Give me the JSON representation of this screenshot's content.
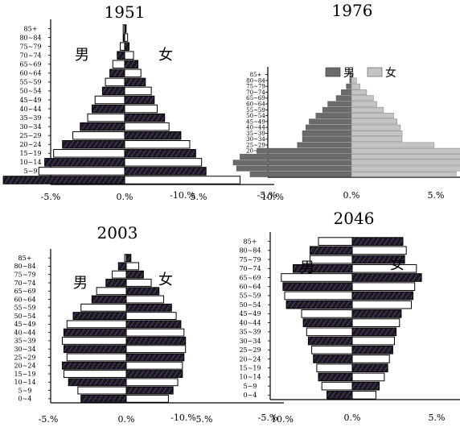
{
  "chart_data": [
    {
      "type": "bar",
      "title": "1951",
      "style": "hatched",
      "categories": [
        "0~4",
        "5~9",
        "10~14",
        "15~19",
        "20~24",
        "25~29",
        "30~34",
        "35~39",
        "40~44",
        "45~49",
        "50~54",
        "55~59",
        "60~64",
        "65~69",
        "70~74",
        "75~79",
        "80~84",
        "85+"
      ],
      "series": [
        {
          "name": "男",
          "values": [
            8.2,
            5.8,
            5.4,
            4.8,
            4.2,
            3.5,
            3.0,
            2.5,
            2.2,
            2.0,
            1.5,
            1.3,
            1.0,
            0.8,
            0.5,
            0.3,
            0.1,
            0.1
          ]
        },
        {
          "name": "女",
          "values": [
            7.8,
            5.5,
            5.2,
            4.8,
            4.4,
            3.8,
            3.0,
            2.7,
            2.2,
            2.0,
            1.8,
            1.4,
            1.1,
            0.9,
            0.6,
            0.3,
            0.2,
            0.1
          ]
        }
      ],
      "xlim": [
        -10,
        10
      ],
      "xticks": [
        "-10.%",
        "-5.%",
        "0.%",
        "5.%",
        "10.%"
      ]
    },
    {
      "type": "bar",
      "title": "1976",
      "style": "shaded",
      "categories": [
        "0~4",
        "5~9",
        "10~14",
        "15~19",
        "20~24",
        "25~29",
        "30~34",
        "35~39",
        "40~44",
        "45~49",
        "50~54",
        "55~59",
        "60~64",
        "65~69",
        "70~74",
        "75~79",
        "80~84",
        "85+"
      ],
      "series": [
        {
          "name": "男",
          "values": [
            6.0,
            6.8,
            7.0,
            6.6,
            5.6,
            3.2,
            2.9,
            2.9,
            2.7,
            2.5,
            2.1,
            1.7,
            1.4,
            0.9,
            0.6,
            0.3,
            0.1,
            0.1
          ]
        },
        {
          "name": "女",
          "values": [
            6.2,
            6.7,
            7.0,
            6.8,
            6.7,
            4.9,
            3.0,
            3.0,
            2.9,
            2.7,
            2.5,
            1.9,
            1.5,
            1.3,
            0.9,
            0.5,
            0.3,
            0.1
          ]
        }
      ],
      "legend": [
        "男",
        "女"
      ],
      "legend_colors": [
        "#6b6b6b",
        "#c4c4c4"
      ],
      "xlim": [
        -10,
        10
      ],
      "xticks": [
        "-10.%",
        "-5.%",
        "0.%",
        "5.%",
        "10.%"
      ]
    },
    {
      "type": "bar",
      "title": "2003",
      "style": "hatched",
      "categories": [
        "0~4",
        "5~9",
        "10~14",
        "15~19",
        "20~24",
        "25~29",
        "30~34",
        "35~39",
        "40~44",
        "45~49",
        "50~54",
        "55~59",
        "60~64",
        "65~69",
        "70~74",
        "75~79",
        "80~84",
        "85+"
      ],
      "series": [
        {
          "name": "男",
          "values": [
            2.9,
            3.1,
            3.7,
            4.0,
            4.1,
            3.8,
            4.0,
            4.1,
            4.0,
            3.8,
            3.4,
            2.9,
            2.2,
            1.9,
            1.3,
            0.9,
            0.5,
            0.1
          ]
        },
        {
          "name": "女",
          "values": [
            2.7,
            3.0,
            3.3,
            3.6,
            3.6,
            3.7,
            3.8,
            3.8,
            3.7,
            3.5,
            3.2,
            2.9,
            2.4,
            2.1,
            1.6,
            1.1,
            0.8,
            0.3
          ]
        }
      ],
      "xlim": [
        -10,
        10
      ],
      "xticks": [
        "-10.%",
        "-5.%",
        "0.%",
        "5.%",
        "10.%"
      ]
    },
    {
      "type": "bar",
      "title": "2046",
      "style": "hatched",
      "categories": [
        "0~4",
        "5~9",
        "10~14",
        "15~19",
        "20~24",
        "25~29",
        "30~34",
        "35~39",
        "40~44",
        "45~49",
        "50~54",
        "55~59",
        "60~64",
        "65~69",
        "70~74",
        "75~79",
        "80~84",
        "85+"
      ],
      "series": [
        {
          "name": "男",
          "values": [
            1.5,
            1.8,
            2.0,
            2.1,
            2.3,
            2.4,
            2.6,
            2.7,
            2.9,
            3.0,
            3.9,
            4.0,
            4.1,
            4.2,
            3.5,
            2.5,
            2.5,
            2.0
          ]
        },
        {
          "name": "女",
          "values": [
            1.4,
            1.6,
            1.9,
            2.1,
            2.2,
            2.4,
            2.5,
            2.6,
            2.8,
            2.9,
            3.5,
            3.6,
            3.7,
            4.1,
            3.8,
            3.1,
            3.2,
            3.0
          ]
        }
      ],
      "xlim": [
        -10,
        10
      ],
      "xticks": [
        "-10.%",
        "-5.%",
        "0.%",
        "5.%",
        "10.%"
      ]
    }
  ],
  "labels": {
    "male": "男",
    "female": "女"
  }
}
